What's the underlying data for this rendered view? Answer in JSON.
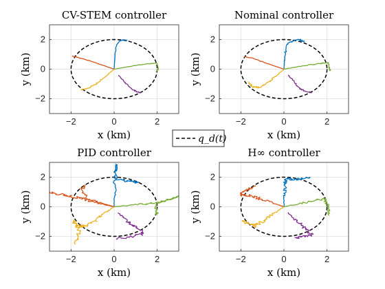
{
  "figure": {
    "legend_label": "q_d(t)"
  },
  "chart_data": [
    {
      "type": "line",
      "title": "CV-STEM controller",
      "xlabel": "x (km)",
      "ylabel": "y (km)",
      "xlim": [
        -3,
        3
      ],
      "ylim": [
        -3,
        3
      ],
      "xticks": [
        -2,
        0,
        2
      ],
      "yticks": [
        -2,
        0,
        2
      ],
      "xtick_labels": [
        "-2",
        "0",
        "2"
      ],
      "ytick_labels": [
        "-2",
        "0",
        "2"
      ],
      "grid": true,
      "reference": {
        "name": "q_d(t)",
        "shape": "ellipse",
        "center": [
          0,
          0
        ],
        "rx": 2,
        "ry": 2
      },
      "series": [
        {
          "color": "#0072BD",
          "noise": 0.02,
          "points": [
            [
              0,
              0
            ],
            [
              0.02,
              0.5
            ],
            [
              0.05,
              1.0
            ],
            [
              0.1,
              1.6
            ],
            [
              0.25,
              1.9
            ],
            [
              0.45,
              1.98
            ],
            [
              0.6,
              1.95
            ]
          ]
        },
        {
          "color": "#D95319",
          "noise": 0.02,
          "points": [
            [
              0,
              0
            ],
            [
              -0.4,
              0.2
            ],
            [
              -0.9,
              0.45
            ],
            [
              -1.6,
              0.75
            ],
            [
              -1.95,
              0.9
            ]
          ]
        },
        {
          "color": "#EDB120",
          "noise": 0.04,
          "points": [
            [
              0,
              0
            ],
            [
              -0.4,
              -0.5
            ],
            [
              -0.8,
              -0.95
            ],
            [
              -1.2,
              -1.3
            ],
            [
              -1.55,
              -1.4
            ]
          ]
        },
        {
          "color": "#7E2F8E",
          "noise": 0.03,
          "points": [
            [
              0.2,
              -0.4
            ],
            [
              0.5,
              -0.9
            ],
            [
              0.8,
              -1.3
            ],
            [
              1.0,
              -1.5
            ],
            [
              1.25,
              -1.6
            ]
          ]
        },
        {
          "color": "#77AC30",
          "noise": 0.02,
          "points": [
            [
              0,
              0
            ],
            [
              0.6,
              0.15
            ],
            [
              1.2,
              0.3
            ],
            [
              1.7,
              0.38
            ],
            [
              2.0,
              0.4
            ],
            [
              2.05,
              0.0
            ],
            [
              1.95,
              -0.2
            ]
          ]
        }
      ]
    },
    {
      "type": "line",
      "title": "Nominal controller",
      "xlabel": "x (km)",
      "ylabel": "y (km)",
      "xlim": [
        -3,
        3
      ],
      "ylim": [
        -3,
        3
      ],
      "xticks": [
        -2,
        0,
        2
      ],
      "yticks": [
        -2,
        0,
        2
      ],
      "xtick_labels": [
        "-2",
        "0",
        "2"
      ],
      "ytick_labels": [
        "-2",
        "0",
        "2"
      ],
      "grid": true,
      "reference": {
        "name": "q_d(t)",
        "shape": "ellipse",
        "center": [
          0,
          0
        ],
        "rx": 2,
        "ry": 2
      },
      "series": [
        {
          "color": "#0072BD",
          "noise": 0.04,
          "points": [
            [
              0,
              0
            ],
            [
              0.02,
              0.5
            ],
            [
              0.05,
              1.0
            ],
            [
              0.15,
              1.7
            ],
            [
              0.4,
              1.9
            ],
            [
              0.7,
              2.0
            ],
            [
              0.95,
              1.85
            ]
          ]
        },
        {
          "color": "#D95319",
          "noise": 0.02,
          "points": [
            [
              0,
              0
            ],
            [
              -0.4,
              0.2
            ],
            [
              -0.9,
              0.45
            ],
            [
              -1.5,
              0.75
            ],
            [
              -1.85,
              0.85
            ]
          ]
        },
        {
          "color": "#EDB120",
          "noise": 0.06,
          "points": [
            [
              0,
              0
            ],
            [
              -0.4,
              -0.5
            ],
            [
              -0.8,
              -0.95
            ],
            [
              -1.15,
              -1.25
            ],
            [
              -1.45,
              -1.2
            ],
            [
              -1.65,
              -0.85
            ]
          ]
        },
        {
          "color": "#7E2F8E",
          "noise": 0.04,
          "points": [
            [
              0.2,
              -0.4
            ],
            [
              0.45,
              -0.8
            ],
            [
              0.7,
              -1.3
            ],
            [
              0.95,
              -1.45
            ],
            [
              1.3,
              -1.6
            ]
          ]
        },
        {
          "color": "#77AC30",
          "noise": 0.03,
          "points": [
            [
              0,
              0
            ],
            [
              0.6,
              0.15
            ],
            [
              1.2,
              0.3
            ],
            [
              1.7,
              0.38
            ],
            [
              2.05,
              0.45
            ],
            [
              2.1,
              0.1
            ],
            [
              2.15,
              -0.1
            ]
          ]
        }
      ]
    },
    {
      "type": "line",
      "title": "PID controller",
      "xlabel": "x (km)",
      "ylabel": "y (km)",
      "xlim": [
        -3,
        3
      ],
      "ylim": [
        -3,
        3
      ],
      "xticks": [
        -2,
        0,
        2
      ],
      "yticks": [
        -2,
        0,
        2
      ],
      "xtick_labels": [
        "-2",
        "0",
        "2"
      ],
      "ytick_labels": [
        "-2",
        "0",
        "2"
      ],
      "grid": true,
      "reference": {
        "name": "q_d(t)",
        "shape": "ellipse",
        "center": [
          0,
          0
        ],
        "rx": 2,
        "ry": 2
      },
      "series": [
        {
          "color": "#0072BD",
          "noise": 0.08,
          "points": [
            [
              0,
              0
            ],
            [
              0.02,
              1.2
            ],
            [
              0.05,
              2.4
            ],
            [
              0.08,
              2.9
            ],
            [
              0.1,
              1.9
            ],
            [
              0.5,
              1.75
            ],
            [
              1.0,
              1.7
            ],
            [
              1.1,
              1.65
            ]
          ]
        },
        {
          "color": "#D95319",
          "noise": 0.08,
          "points": [
            [
              -3.0,
              1.0
            ],
            [
              -2.4,
              0.8
            ],
            [
              -1.8,
              0.65
            ],
            [
              -1.5,
              0.6
            ],
            [
              -1.2,
              0.45
            ],
            [
              -0.6,
              0.2
            ],
            [
              0,
              0
            ],
            [
              -0.7,
              0.3
            ],
            [
              -1.3,
              0.6
            ],
            [
              -1.5,
              1.2
            ],
            [
              -1.35,
              1.5
            ]
          ]
        },
        {
          "color": "#EDB120",
          "noise": 0.1,
          "points": [
            [
              0,
              0
            ],
            [
              -0.5,
              -0.5
            ],
            [
              -1.0,
              -1.0
            ],
            [
              -1.4,
              -1.3
            ],
            [
              -1.75,
              -1.3
            ],
            [
              -1.9,
              -0.9
            ],
            [
              -1.6,
              -1.6
            ],
            [
              -1.8,
              -2.55
            ]
          ]
        },
        {
          "color": "#7E2F8E",
          "noise": 0.08,
          "points": [
            [
              0.2,
              -0.4
            ],
            [
              0.5,
              -0.8
            ],
            [
              0.8,
              -1.2
            ],
            [
              1.1,
              -1.5
            ],
            [
              1.4,
              -1.8
            ],
            [
              0.9,
              -2.0
            ],
            [
              0.1,
              -2.15
            ]
          ]
        },
        {
          "color": "#77AC30",
          "noise": 0.06,
          "points": [
            [
              0,
              0
            ],
            [
              0.7,
              0.1
            ],
            [
              1.4,
              0.2
            ],
            [
              2.0,
              0.3
            ],
            [
              2.6,
              0.5
            ],
            [
              3.0,
              0.7
            ],
            [
              1.9,
              0.15
            ],
            [
              2.0,
              -0.4
            ],
            [
              1.95,
              -0.5
            ]
          ]
        }
      ]
    },
    {
      "type": "line",
      "title": "H∞ controller",
      "xlabel": "x (km)",
      "ylabel": "y (km)",
      "xlim": [
        -3,
        3
      ],
      "ylim": [
        -3,
        3
      ],
      "xticks": [
        -2,
        0,
        2
      ],
      "yticks": [
        -2,
        0,
        2
      ],
      "xtick_labels": [
        "-2",
        "0",
        "2"
      ],
      "ytick_labels": [
        "-2",
        "0",
        "2"
      ],
      "grid": true,
      "reference": {
        "name": "q_d(t)",
        "shape": "ellipse",
        "center": [
          0,
          0
        ],
        "rx": 2,
        "ry": 2
      },
      "series": [
        {
          "color": "#0072BD",
          "noise": 0.08,
          "points": [
            [
              0,
              0
            ],
            [
              0.02,
              0.8
            ],
            [
              0.05,
              1.5
            ],
            [
              0.1,
              1.9
            ],
            [
              0.5,
              1.85
            ],
            [
              0.9,
              1.9
            ],
            [
              1.2,
              2.0
            ]
          ]
        },
        {
          "color": "#D95319",
          "noise": 0.08,
          "points": [
            [
              0,
              0
            ],
            [
              -0.5,
              0.25
            ],
            [
              -1.0,
              0.5
            ],
            [
              -1.6,
              0.75
            ],
            [
              -2.05,
              0.8
            ],
            [
              -1.8,
              1.1
            ],
            [
              -1.3,
              1.4
            ]
          ]
        },
        {
          "color": "#EDB120",
          "noise": 0.1,
          "points": [
            [
              0,
              0
            ],
            [
              -0.5,
              -0.5
            ],
            [
              -1.0,
              -1.0
            ],
            [
              -1.3,
              -1.3
            ],
            [
              -1.7,
              -1.1
            ],
            [
              -1.95,
              -0.95
            ]
          ]
        },
        {
          "color": "#7E2F8E",
          "noise": 0.08,
          "points": [
            [
              0.2,
              -0.4
            ],
            [
              0.55,
              -0.9
            ],
            [
              0.85,
              -1.3
            ],
            [
              1.1,
              -1.6
            ],
            [
              1.3,
              -1.9
            ],
            [
              0.9,
              -2.0
            ],
            [
              0.5,
              -2.1
            ]
          ]
        },
        {
          "color": "#77AC30",
          "noise": 0.08,
          "points": [
            [
              0,
              0
            ],
            [
              0.7,
              0.2
            ],
            [
              1.4,
              0.4
            ],
            [
              1.9,
              0.55
            ],
            [
              2.0,
              0.2
            ],
            [
              2.1,
              -0.3
            ],
            [
              2.1,
              -0.6
            ]
          ]
        }
      ]
    }
  ]
}
